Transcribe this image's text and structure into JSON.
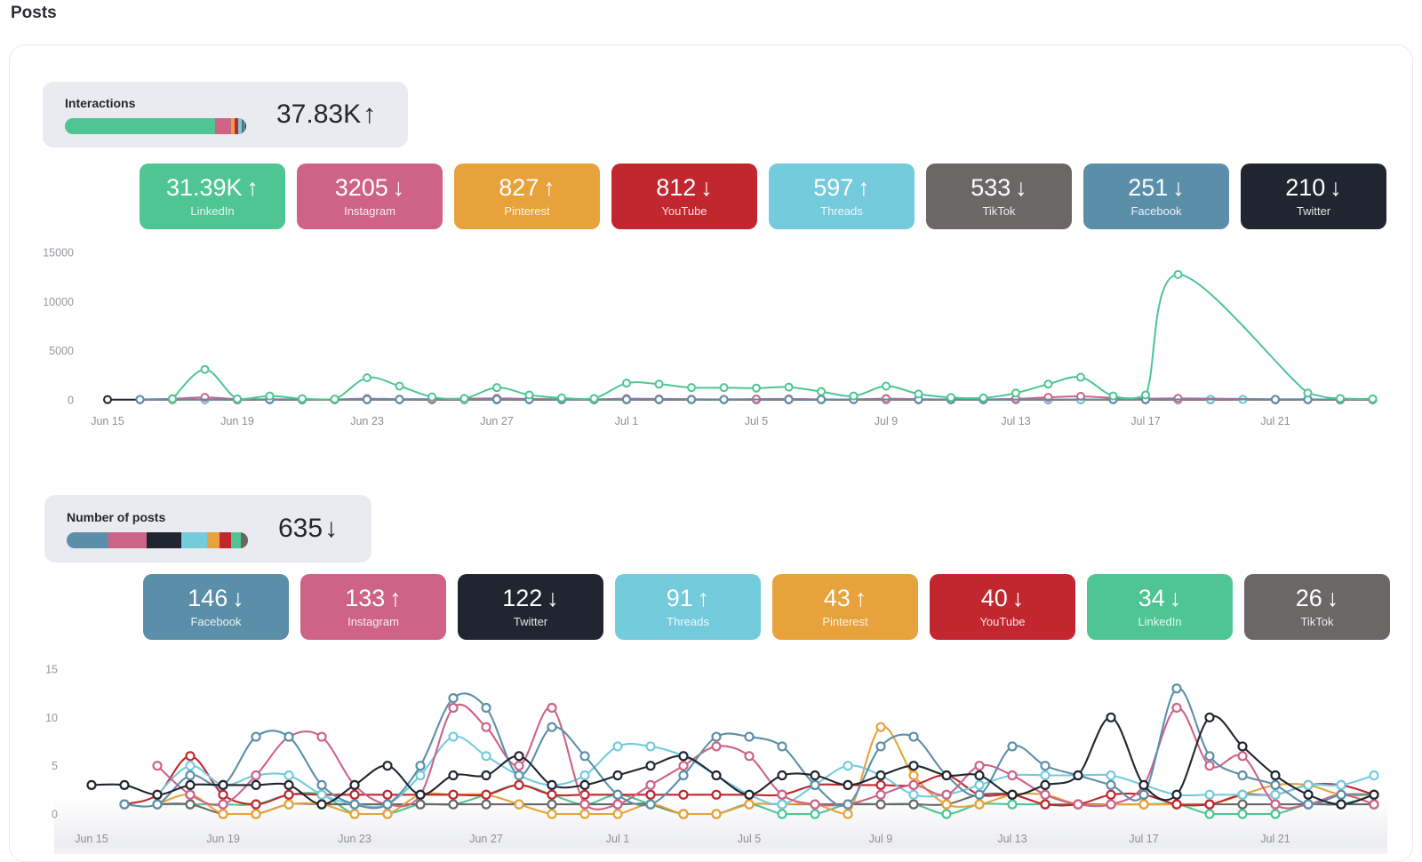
{
  "page": {
    "title": "Posts"
  },
  "glyphs": {
    "up": "↑",
    "down": "↓"
  },
  "colors": {
    "LinkedIn": "#4ec592",
    "Instagram": "#ce6387",
    "Pinterest": "#e7a23b",
    "YouTube": "#c2262e",
    "Threads": "#74cbdc",
    "TikTok": "#6b6767",
    "Facebook": "#5b8fa9",
    "Twitter": "#20252f"
  },
  "interactions": {
    "label": "Interactions",
    "total": "37.83K",
    "trend": "up",
    "cards": [
      {
        "platform": "LinkedIn",
        "value": "31.39K",
        "amount": 31390,
        "trend": "up"
      },
      {
        "platform": "Instagram",
        "value": "3205",
        "amount": 3205,
        "trend": "down"
      },
      {
        "platform": "Pinterest",
        "value": "827",
        "amount": 827,
        "trend": "up"
      },
      {
        "platform": "YouTube",
        "value": "812",
        "amount": 812,
        "trend": "down"
      },
      {
        "platform": "Threads",
        "value": "597",
        "amount": 597,
        "trend": "up"
      },
      {
        "platform": "TikTok",
        "value": "533",
        "amount": 533,
        "trend": "down"
      },
      {
        "platform": "Facebook",
        "value": "251",
        "amount": 251,
        "trend": "down"
      },
      {
        "platform": "Twitter",
        "value": "210",
        "amount": 210,
        "trend": "down"
      }
    ]
  },
  "posts": {
    "label": "Number of posts",
    "total": "635",
    "trend": "down",
    "cards": [
      {
        "platform": "Facebook",
        "value": "146",
        "amount": 146,
        "trend": "down"
      },
      {
        "platform": "Instagram",
        "value": "133",
        "amount": 133,
        "trend": "up"
      },
      {
        "platform": "Twitter",
        "value": "122",
        "amount": 122,
        "trend": "down"
      },
      {
        "platform": "Threads",
        "value": "91",
        "amount": 91,
        "trend": "up"
      },
      {
        "platform": "Pinterest",
        "value": "43",
        "amount": 43,
        "trend": "up"
      },
      {
        "platform": "YouTube",
        "value": "40",
        "amount": 40,
        "trend": "down"
      },
      {
        "platform": "LinkedIn",
        "value": "34",
        "amount": 34,
        "trend": "down"
      },
      {
        "platform": "TikTok",
        "value": "26",
        "amount": 26,
        "trend": "down"
      }
    ]
  },
  "chart_data": [
    {
      "id": "interactions-over-time",
      "type": "line",
      "title": "Interactions per day by platform",
      "xlabel": "",
      "ylabel": "",
      "grid": false,
      "legend": "none",
      "ylim": [
        0,
        15000
      ],
      "yticks": [
        "0",
        "5000",
        "10000",
        "15000"
      ],
      "x_tick_labels": [
        "Jun 15",
        "Jun 19",
        "Jun 23",
        "Jun 27",
        "Jul 1",
        "Jul 5",
        "Jul 9",
        "Jul 13",
        "Jul 17",
        "Jul 21"
      ],
      "dates": [
        "Jun 15",
        "Jun 16",
        "Jun 17",
        "Jun 18",
        "Jun 19",
        "Jun 20",
        "Jun 21",
        "Jun 22",
        "Jun 23",
        "Jun 24",
        "Jun 25",
        "Jun 26",
        "Jun 27",
        "Jun 28",
        "Jun 29",
        "Jun 30",
        "Jul 1",
        "Jul 2",
        "Jul 3",
        "Jul 4",
        "Jul 5",
        "Jul 6",
        "Jul 7",
        "Jul 8",
        "Jul 9",
        "Jul 10",
        "Jul 11",
        "Jul 12",
        "Jul 13",
        "Jul 14",
        "Jul 15",
        "Jul 16",
        "Jul 17",
        "Jul 18",
        "Jul 19",
        "Jul 20",
        "Jul 21",
        "Jul 22",
        "Jul 23",
        "Jul 24"
      ],
      "series": [
        {
          "name": "Twitter",
          "color": "#20252f",
          "values": [
            30,
            25,
            20,
            25,
            20,
            25,
            20,
            25,
            20,
            25,
            20,
            25,
            20,
            25,
            20,
            25,
            20,
            25,
            20,
            25,
            20,
            25,
            20,
            25,
            20,
            25,
            20,
            25,
            60,
            25,
            20,
            25,
            20,
            25,
            40,
            45,
            20,
            25,
            20,
            25
          ]
        },
        {
          "name": "TikTok",
          "color": "#6b6767",
          "values": [
            null,
            null,
            20,
            25,
            20,
            15,
            20,
            25,
            20,
            15,
            20,
            25,
            20,
            15,
            20,
            25,
            20,
            15,
            20,
            25,
            20,
            15,
            20,
            25,
            20,
            15,
            20,
            25,
            20,
            15,
            20,
            25,
            20,
            15,
            20,
            null,
            20,
            15,
            20,
            15
          ]
        },
        {
          "name": "Pinterest",
          "color": "#e7a23b",
          "values": [
            null,
            null,
            25,
            30,
            25,
            20,
            25,
            30,
            25,
            20,
            25,
            30,
            25,
            20,
            25,
            30,
            25,
            20,
            25,
            30,
            25,
            20,
            25,
            30,
            25,
            20,
            25,
            30,
            25,
            20,
            25,
            30,
            25,
            20,
            25,
            null,
            25,
            20,
            25,
            20
          ]
        },
        {
          "name": "YouTube",
          "color": "#c2262e",
          "values": [
            null,
            25,
            30,
            45,
            30,
            25,
            30,
            35,
            30,
            25,
            30,
            35,
            30,
            25,
            30,
            35,
            30,
            25,
            30,
            35,
            30,
            25,
            30,
            35,
            30,
            25,
            30,
            35,
            30,
            25,
            30,
            35,
            30,
            25,
            30,
            null,
            30,
            25,
            30,
            25
          ]
        },
        {
          "name": "Threads",
          "color": "#74cbdc",
          "values": [
            null,
            30,
            35,
            40,
            35,
            30,
            35,
            40,
            35,
            30,
            40,
            55,
            40,
            35,
            30,
            35,
            40,
            35,
            30,
            35,
            40,
            35,
            30,
            45,
            40,
            35,
            30,
            35,
            40,
            35,
            30,
            35,
            40,
            45,
            50,
            40,
            35,
            30,
            35,
            30
          ]
        },
        {
          "name": "Instagram",
          "color": "#ce6387",
          "values": [
            null,
            40,
            120,
            260,
            80,
            60,
            50,
            50,
            130,
            80,
            90,
            null,
            160,
            100,
            60,
            50,
            130,
            100,
            80,
            60,
            90,
            100,
            60,
            50,
            130,
            80,
            50,
            40,
            110,
            260,
            360,
            200,
            120,
            160,
            null,
            null,
            60,
            50,
            40,
            40
          ]
        },
        {
          "name": "Facebook",
          "color": "#5b8fa9",
          "values": [
            null,
            50,
            null,
            null,
            40,
            45,
            40,
            45,
            50,
            45,
            null,
            null,
            55,
            45,
            40,
            45,
            50,
            45,
            45,
            40,
            null,
            45,
            40,
            45,
            null,
            40,
            45,
            40,
            null,
            null,
            null,
            45,
            50,
            null,
            null,
            null,
            45,
            50,
            45,
            50
          ]
        },
        {
          "name": "LinkedIn",
          "color": "#4ec592",
          "values": [
            null,
            null,
            100,
            3100,
            100,
            400,
            120,
            80,
            2250,
            1400,
            300,
            150,
            1250,
            500,
            200,
            150,
            1700,
            1600,
            1250,
            1250,
            1200,
            1300,
            850,
            400,
            1400,
            600,
            250,
            200,
            700,
            1600,
            2300,
            400,
            500,
            12750,
            null,
            null,
            null,
            700,
            150,
            100
          ]
        }
      ]
    },
    {
      "id": "posts-over-time",
      "type": "line",
      "title": "Number of posts per day by platform",
      "xlabel": "",
      "ylabel": "",
      "grid": false,
      "legend": "none",
      "ylim": [
        0,
        15
      ],
      "yticks": [
        "0",
        "5",
        "10",
        "15"
      ],
      "x_tick_labels": [
        "Jun 15",
        "Jun 19",
        "Jun 23",
        "Jun 27",
        "Jul 1",
        "Jul 5",
        "Jul 9",
        "Jul 13",
        "Jul 17",
        "Jul 21"
      ],
      "dates": [
        "Jun 15",
        "Jun 16",
        "Jun 17",
        "Jun 18",
        "Jun 19",
        "Jun 20",
        "Jun 21",
        "Jun 22",
        "Jun 23",
        "Jun 24",
        "Jun 25",
        "Jun 26",
        "Jun 27",
        "Jun 28",
        "Jun 29",
        "Jun 30",
        "Jul 1",
        "Jul 2",
        "Jul 3",
        "Jul 4",
        "Jul 5",
        "Jul 6",
        "Jul 7",
        "Jul 8",
        "Jul 9",
        "Jul 10",
        "Jul 11",
        "Jul 12",
        "Jul 13",
        "Jul 14",
        "Jul 15",
        "Jul 16",
        "Jul 17",
        "Jul 18",
        "Jul 19",
        "Jul 20",
        "Jul 21",
        "Jul 22",
        "Jul 23",
        "Jul 24"
      ],
      "series": [
        {
          "name": "LinkedIn",
          "color": "#4ec592",
          "values": [
            null,
            null,
            1,
            1,
            1,
            1,
            2,
            2,
            0,
            0,
            1,
            1,
            2,
            3,
            2,
            1,
            2,
            1,
            0,
            0,
            1,
            0,
            0,
            1,
            1,
            1,
            0,
            1,
            1,
            1,
            1,
            1,
            1,
            1,
            0,
            0,
            0,
            1,
            1,
            2
          ]
        },
        {
          "name": "TikTok",
          "color": "#6b6767",
          "values": [
            null,
            null,
            1,
            1,
            0,
            0,
            1,
            1,
            1,
            1,
            1,
            1,
            1,
            1,
            1,
            1,
            1,
            1,
            0,
            0,
            1,
            1,
            1,
            1,
            1,
            1,
            1,
            2,
            2,
            1,
            1,
            1,
            1,
            1,
            1,
            1,
            1,
            1,
            1,
            1
          ]
        },
        {
          "name": "Pinterest",
          "color": "#e7a23b",
          "values": [
            null,
            null,
            1,
            2,
            0,
            0,
            1,
            1,
            0,
            0,
            2,
            2,
            2,
            1,
            0,
            0,
            0,
            1,
            0,
            0,
            1,
            1,
            1,
            0,
            9,
            4,
            1,
            1,
            2,
            2,
            1,
            1,
            1,
            1,
            1,
            2,
            3,
            3,
            2,
            2
          ]
        },
        {
          "name": "YouTube",
          "color": "#c2262e",
          "values": [
            null,
            1,
            2,
            6,
            2,
            1,
            2,
            2,
            2,
            2,
            2,
            2,
            2,
            3,
            2,
            2,
            2,
            2,
            2,
            2,
            2,
            2,
            3,
            3,
            3,
            3,
            4,
            2,
            2,
            1,
            1,
            2,
            2,
            1,
            1,
            2,
            2,
            3,
            3,
            2
          ]
        },
        {
          "name": "Threads",
          "color": "#74cbdc",
          "values": [
            null,
            null,
            2,
            5,
            3,
            4,
            4,
            2,
            1,
            1,
            4,
            8,
            6,
            4,
            3,
            4,
            7,
            7,
            6,
            4,
            2,
            1,
            3,
            5,
            4,
            2,
            2,
            3,
            4,
            4,
            4,
            4,
            3,
            2,
            2,
            2,
            2,
            3,
            3,
            4
          ]
        },
        {
          "name": "Instagram",
          "color": "#ce6387",
          "values": [
            null,
            null,
            5,
            2,
            1,
            4,
            8,
            8,
            3,
            1,
            2,
            11,
            9,
            5,
            11,
            1,
            1,
            3,
            5,
            7,
            6,
            2,
            1,
            1,
            2,
            3,
            2,
            5,
            4,
            2,
            1,
            1,
            3,
            11,
            5,
            6,
            1,
            1,
            2,
            1
          ]
        },
        {
          "name": "Facebook",
          "color": "#5b8fa9",
          "values": [
            null,
            1,
            1,
            4,
            3,
            8,
            8,
            3,
            1,
            1,
            5,
            12,
            11,
            4,
            9,
            6,
            2,
            1,
            4,
            8,
            8,
            7,
            3,
            1,
            7,
            8,
            4,
            2,
            7,
            5,
            4,
            3,
            2,
            13,
            6,
            4,
            3,
            1,
            2,
            2
          ]
        },
        {
          "name": "Twitter",
          "color": "#20252f",
          "values": [
            3,
            3,
            2,
            3,
            3,
            3,
            3,
            1,
            3,
            5,
            2,
            4,
            4,
            6,
            3,
            3,
            4,
            5,
            6,
            4,
            2,
            4,
            4,
            3,
            4,
            5,
            4,
            4,
            2,
            3,
            4,
            10,
            3,
            2,
            10,
            7,
            4,
            2,
            1,
            2
          ]
        }
      ]
    }
  ]
}
